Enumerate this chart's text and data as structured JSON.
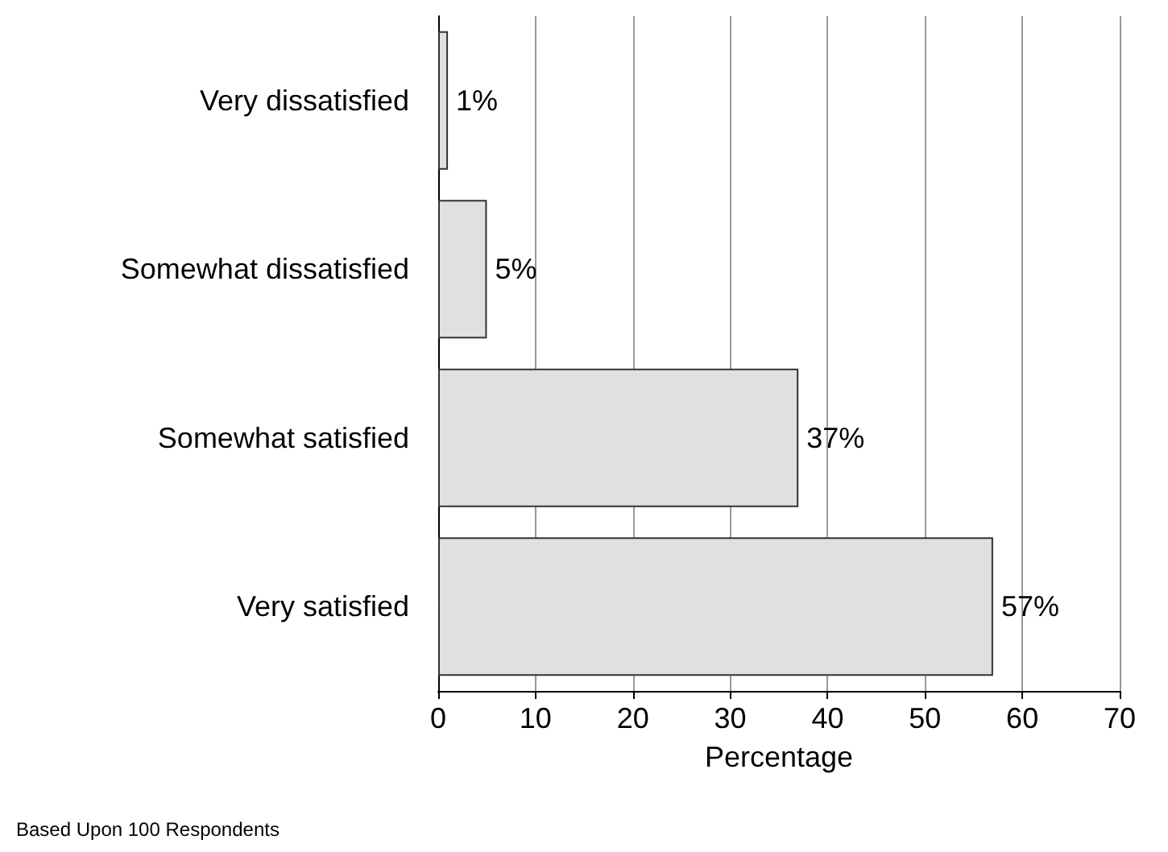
{
  "chart_data": {
    "type": "bar",
    "orientation": "horizontal",
    "categories": [
      "Very dissatisfied",
      "Somewhat dissatisfied",
      "Somewhat satisfied",
      "Very satisfied"
    ],
    "values": [
      1,
      5,
      37,
      57
    ],
    "value_labels": [
      "1%",
      "5%",
      "37%",
      "57%"
    ],
    "color": "#e0e0e0",
    "xlim": [
      0,
      70
    ],
    "xticks": [
      0,
      10,
      20,
      30,
      40,
      50,
      60,
      70
    ],
    "grid": "x",
    "xlabel": "Percentage",
    "annotations": [
      "Based Upon 100 Respondents"
    ]
  }
}
